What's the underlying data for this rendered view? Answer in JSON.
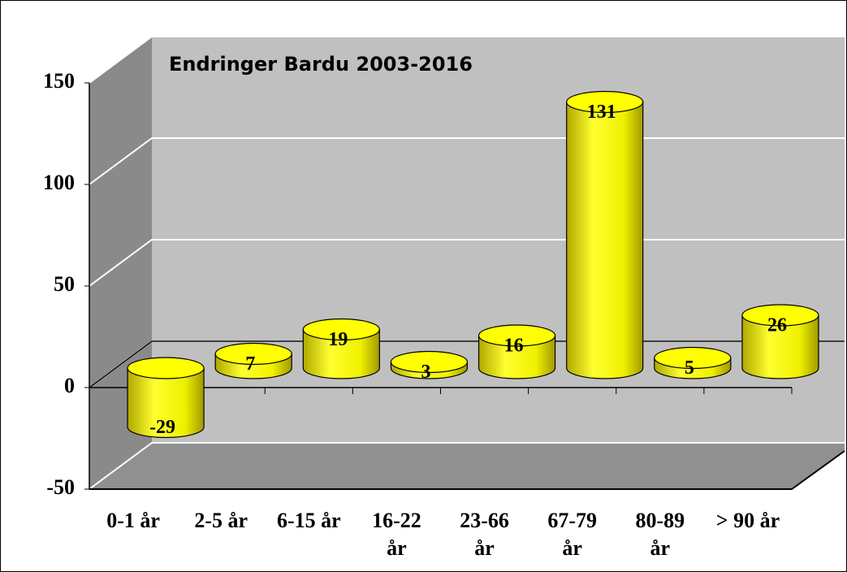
{
  "chart_data": {
    "type": "bar3d",
    "title": "Endringer Bardu 2003-2016",
    "categories": [
      "0-1 år",
      "2-5 år",
      "6-15 år",
      "16-22\når",
      "23-66\når",
      "67-79\når",
      "80-89\når",
      "> 90 år"
    ],
    "values": [
      -29,
      7,
      19,
      3,
      16,
      131,
      5,
      26
    ],
    "color": "#ffff00",
    "ylim": [
      -50,
      150
    ],
    "yticks": [
      -50,
      0,
      50,
      100,
      150
    ],
    "grid": true
  }
}
